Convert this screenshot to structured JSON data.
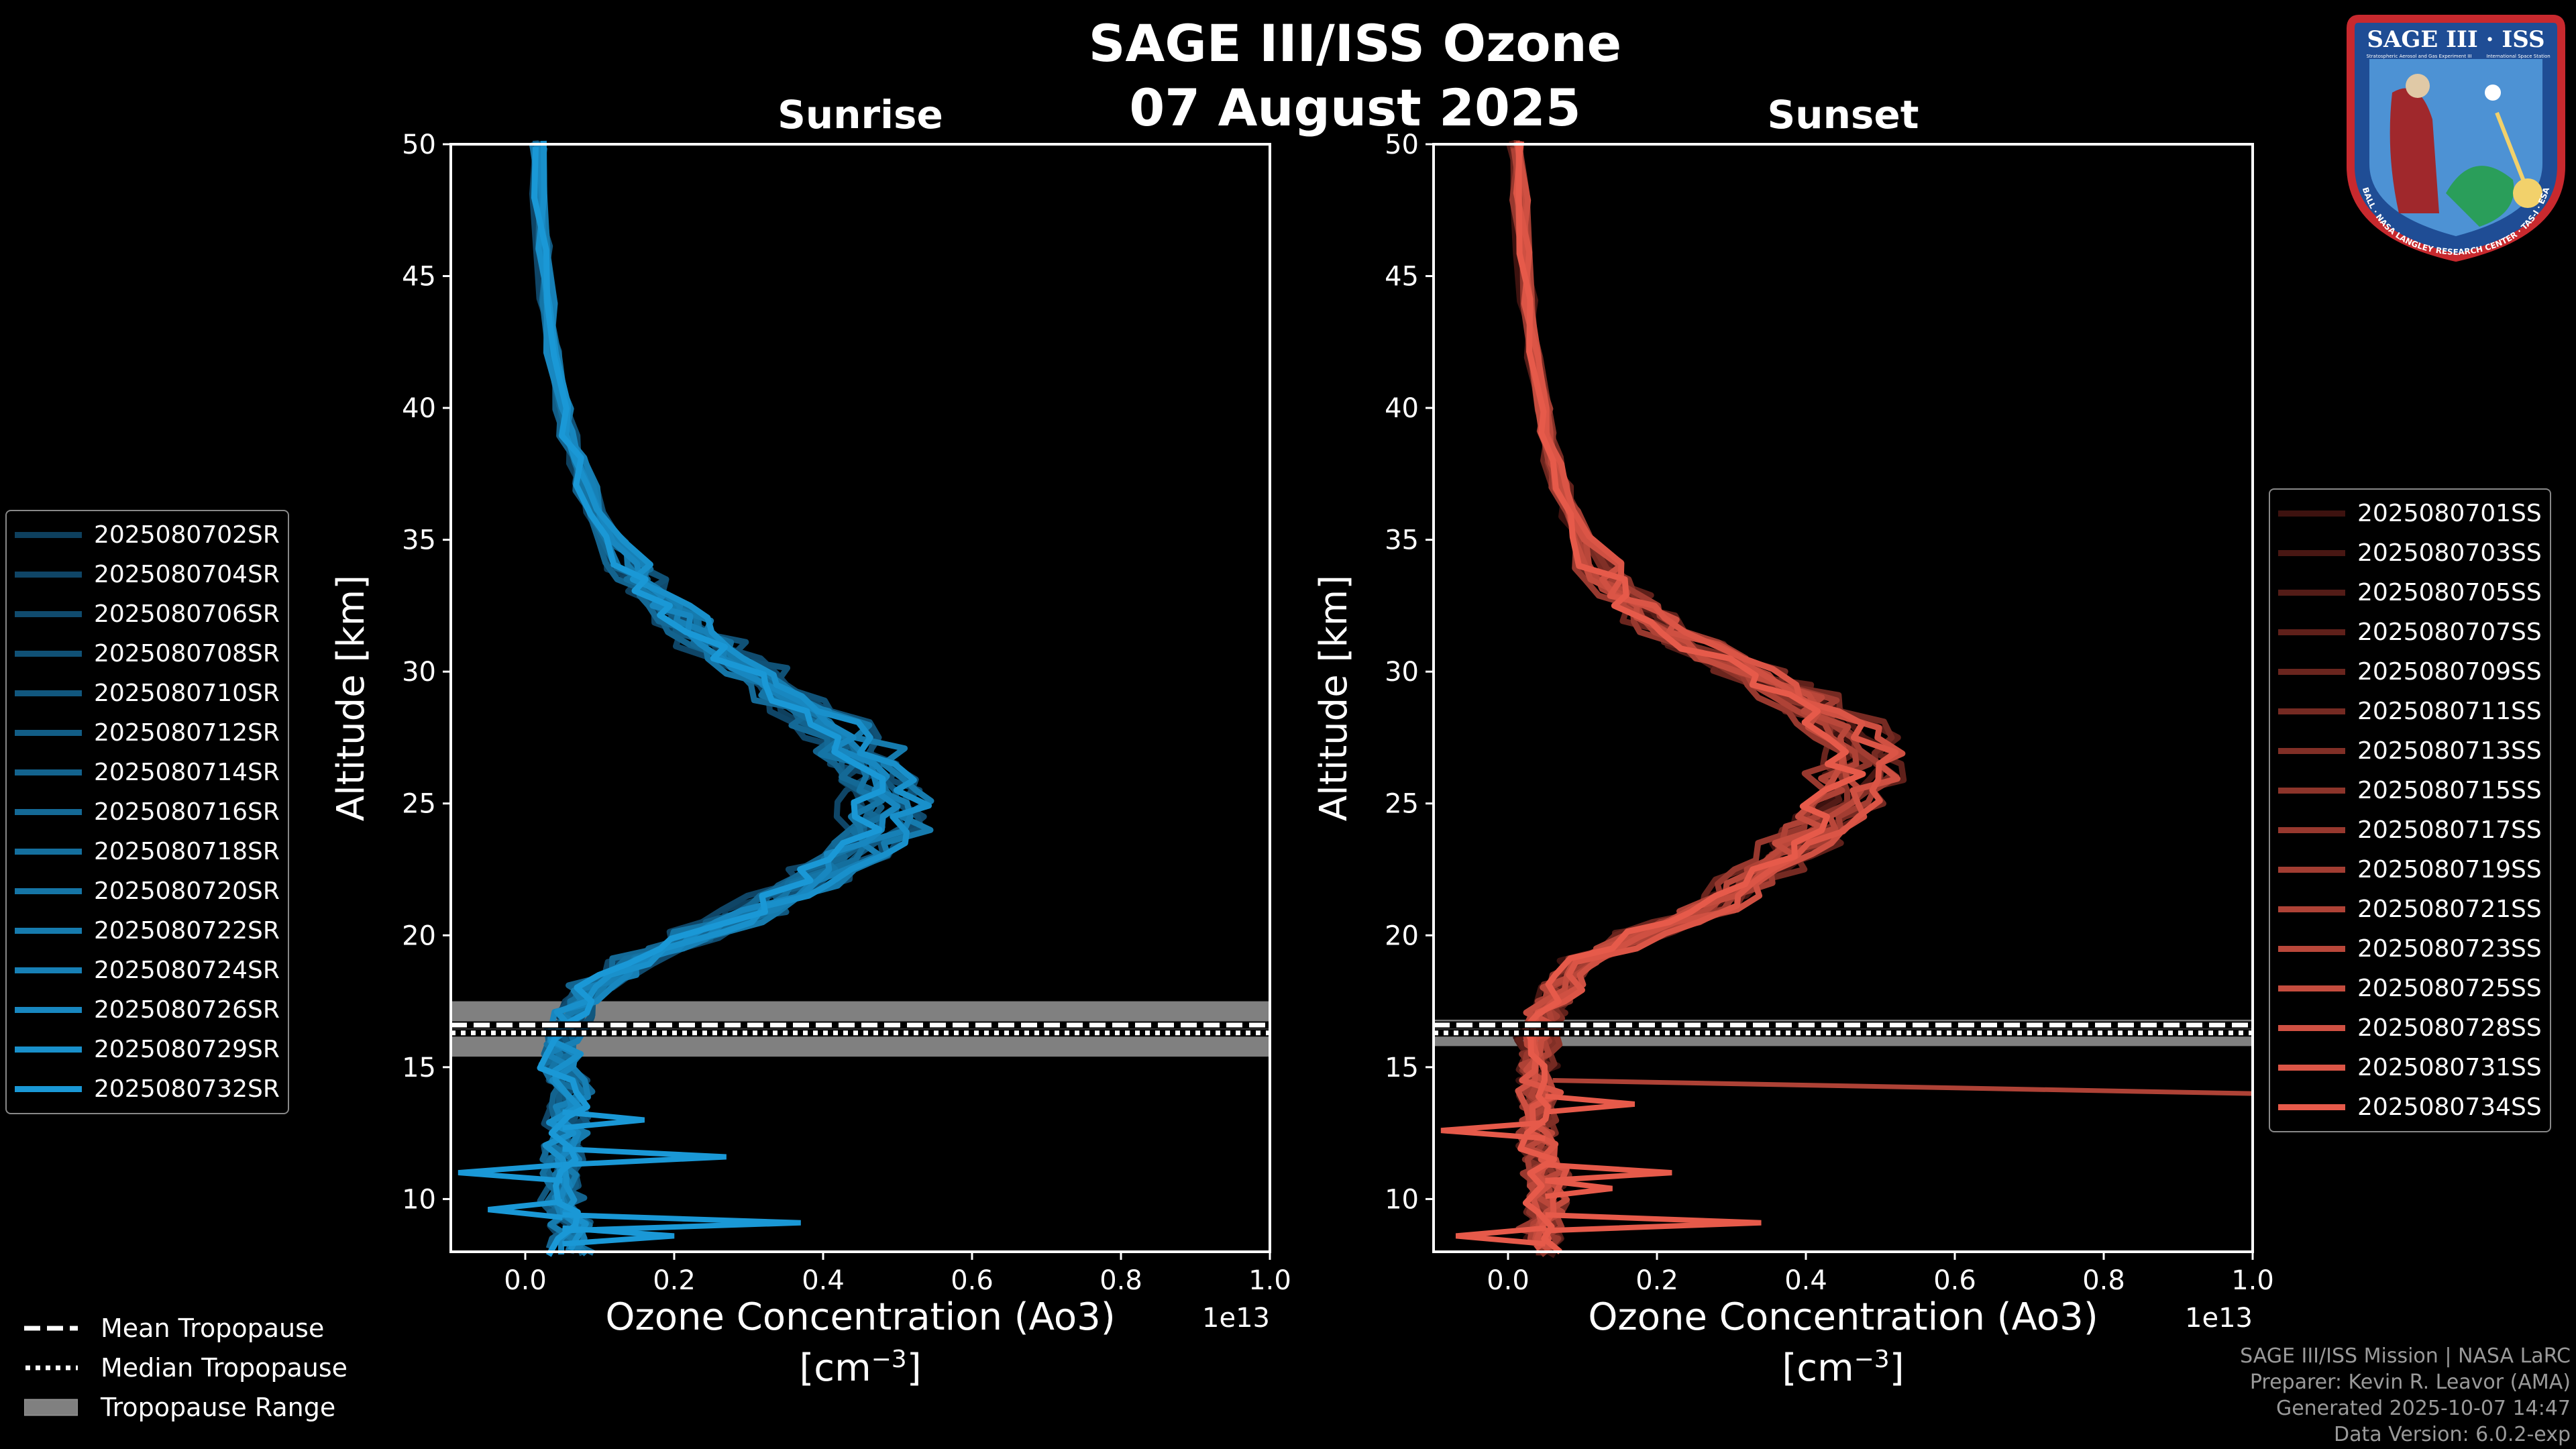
{
  "title_line1": "SAGE III/ISS Ozone",
  "title_line2": "07 August 2025",
  "colors": {
    "background": "#000000",
    "sunrise": "#1a98d6",
    "sunset": "#e65a4a",
    "tropopause_band": "#808080"
  },
  "tropopause_legend": {
    "mean": "Mean Tropopause",
    "median": "Median Tropopause",
    "range": "Tropopause Range"
  },
  "credits": {
    "line1": "SAGE III/ISS Mission | NASA LaRC",
    "line2": "Preparer: Kevin R. Leavor (AMA)",
    "line3": "Generated 2025-10-07 14:47",
    "line4": "Data Version: 6.0.2-exp"
  },
  "logo": {
    "title": "SAGE III · ISS",
    "ring_text": "BALL · NASA LANGLEY RESEARCH CENTER · TAS-I · ESA",
    "tag_left": "Stratospheric Aerosol and Gas Experiment III",
    "tag_right": "International Space Station"
  },
  "chart_data": [
    {
      "type": "line",
      "panel": "sunrise",
      "title": "Sunrise",
      "xlabel": "Ozone Concentration (Ao3)",
      "xunits": "[cm$^{-3}$]",
      "xunits_text": "[cm",
      "xunits_exp": "−3",
      "xunits_close": "]",
      "x_offset_label": "1e13",
      "ylabel": "Altitude [km]",
      "xlim": [
        -0.1,
        1.0
      ],
      "ylim": [
        8,
        50
      ],
      "xticks": [
        "0.0",
        "0.2",
        "0.4",
        "0.6",
        "0.8",
        "1.0"
      ],
      "xtick_values": [
        0.0,
        0.2,
        0.4,
        0.6,
        0.8,
        1.0
      ],
      "yticks": [
        "10",
        "15",
        "20",
        "25",
        "30",
        "35",
        "40",
        "45",
        "50"
      ],
      "ytick_values": [
        10,
        15,
        20,
        25,
        30,
        35,
        40,
        45,
        50
      ],
      "tropopause": {
        "mean_km": 16.6,
        "median_km": 16.3,
        "min_km": 15.4,
        "max_km": 17.5
      },
      "altitudes_km": [
        8,
        9,
        10,
        11,
        12,
        13,
        14,
        15,
        16,
        17,
        18,
        19,
        20,
        21,
        22,
        23,
        24,
        25,
        26,
        27,
        28,
        29,
        30,
        31,
        32,
        33,
        34,
        35,
        36,
        37,
        38,
        39,
        40,
        42,
        44,
        46,
        48,
        50
      ],
      "mean_profile_1e13": [
        0.06,
        0.06,
        0.05,
        0.05,
        0.05,
        0.06,
        0.06,
        0.05,
        0.05,
        0.06,
        0.09,
        0.15,
        0.23,
        0.31,
        0.38,
        0.43,
        0.47,
        0.48,
        0.47,
        0.44,
        0.4,
        0.35,
        0.3,
        0.25,
        0.21,
        0.17,
        0.14,
        0.115,
        0.095,
        0.08,
        0.068,
        0.058,
        0.05,
        0.038,
        0.03,
        0.024,
        0.02,
        0.016
      ],
      "series": [
        {
          "name": "2025080702SR",
          "shade": 0.25
        },
        {
          "name": "2025080704SR",
          "shade": 0.3
        },
        {
          "name": "2025080706SR",
          "shade": 0.35
        },
        {
          "name": "2025080708SR",
          "shade": 0.4
        },
        {
          "name": "2025080710SR",
          "shade": 0.45
        },
        {
          "name": "2025080712SR",
          "shade": 0.5
        },
        {
          "name": "2025080714SR",
          "shade": 0.55
        },
        {
          "name": "2025080716SR",
          "shade": 0.6
        },
        {
          "name": "2025080718SR",
          "shade": 0.65
        },
        {
          "name": "2025080720SR",
          "shade": 0.7
        },
        {
          "name": "2025080722SR",
          "shade": 0.75
        },
        {
          "name": "2025080724SR",
          "shade": 0.8
        },
        {
          "name": "2025080726SR",
          "shade": 0.86
        },
        {
          "name": "2025080729SR",
          "shade": 0.93
        },
        {
          "name": "2025080732SR",
          "shade": 1.0
        }
      ],
      "spikes": [
        {
          "km": 11.0,
          "x": -0.09
        },
        {
          "km": 11.6,
          "x": 0.27
        },
        {
          "km": 9.1,
          "x": 0.37
        },
        {
          "km": 13.0,
          "x": 0.16
        },
        {
          "km": 8.6,
          "x": 0.2
        },
        {
          "km": 9.6,
          "x": -0.05
        }
      ]
    },
    {
      "type": "line",
      "panel": "sunset",
      "title": "Sunset",
      "xlabel": "Ozone Concentration (Ao3)",
      "xunits": "[cm$^{-3}$]",
      "xunits_text": "[cm",
      "xunits_exp": "−3",
      "xunits_close": "]",
      "x_offset_label": "1e13",
      "ylabel": "Altitude [km]",
      "xlim": [
        -0.1,
        1.0
      ],
      "ylim": [
        8,
        50
      ],
      "xticks": [
        "0.0",
        "0.2",
        "0.4",
        "0.6",
        "0.8",
        "1.0"
      ],
      "xtick_values": [
        0.0,
        0.2,
        0.4,
        0.6,
        0.8,
        1.0
      ],
      "yticks": [
        "10",
        "15",
        "20",
        "25",
        "30",
        "35",
        "40",
        "45",
        "50"
      ],
      "ytick_values": [
        10,
        15,
        20,
        25,
        30,
        35,
        40,
        45,
        50
      ],
      "tropopause": {
        "mean_km": 16.6,
        "median_km": 16.3,
        "min_km": 15.8,
        "max_km": 16.8
      },
      "altitudes_km": [
        8,
        9,
        10,
        11,
        12,
        13,
        14,
        15,
        16,
        17,
        18,
        19,
        20,
        21,
        22,
        23,
        24,
        25,
        26,
        27,
        28,
        29,
        30,
        31,
        32,
        33,
        34,
        35,
        36,
        37,
        38,
        39,
        40,
        42,
        44,
        46,
        48,
        50
      ],
      "mean_profile_1e13": [
        0.05,
        0.05,
        0.05,
        0.05,
        0.04,
        0.04,
        0.04,
        0.04,
        0.04,
        0.05,
        0.07,
        0.1,
        0.18,
        0.27,
        0.32,
        0.37,
        0.41,
        0.44,
        0.47,
        0.47,
        0.44,
        0.39,
        0.32,
        0.25,
        0.19,
        0.155,
        0.125,
        0.1,
        0.085,
        0.07,
        0.06,
        0.052,
        0.045,
        0.034,
        0.026,
        0.02,
        0.016,
        0.012
      ],
      "series": [
        {
          "name": "2025080701SS",
          "shade": 0.1
        },
        {
          "name": "2025080703SS",
          "shade": 0.16
        },
        {
          "name": "2025080705SS",
          "shade": 0.22
        },
        {
          "name": "2025080707SS",
          "shade": 0.28
        },
        {
          "name": "2025080709SS",
          "shade": 0.34
        },
        {
          "name": "2025080711SS",
          "shade": 0.4
        },
        {
          "name": "2025080713SS",
          "shade": 0.46
        },
        {
          "name": "2025080715SS",
          "shade": 0.52
        },
        {
          "name": "2025080717SS",
          "shade": 0.58
        },
        {
          "name": "2025080719SS",
          "shade": 0.64
        },
        {
          "name": "2025080721SS",
          "shade": 0.7
        },
        {
          "name": "2025080723SS",
          "shade": 0.76
        },
        {
          "name": "2025080725SS",
          "shade": 0.82
        },
        {
          "name": "2025080728SS",
          "shade": 0.88
        },
        {
          "name": "2025080731SS",
          "shade": 0.94
        },
        {
          "name": "2025080734SS",
          "shade": 1.0
        }
      ],
      "spikes": [
        {
          "km": 12.6,
          "x": -0.09
        },
        {
          "km": 11.0,
          "x": 0.22
        },
        {
          "km": 9.1,
          "x": 0.34
        },
        {
          "km": 13.6,
          "x": 0.17
        },
        {
          "km": 8.6,
          "x": -0.07
        },
        {
          "km": 10.4,
          "x": 0.14
        }
      ],
      "long_spike": {
        "km_start": 14.5,
        "x_end": 1.0,
        "km_end": 14.0
      }
    }
  ]
}
